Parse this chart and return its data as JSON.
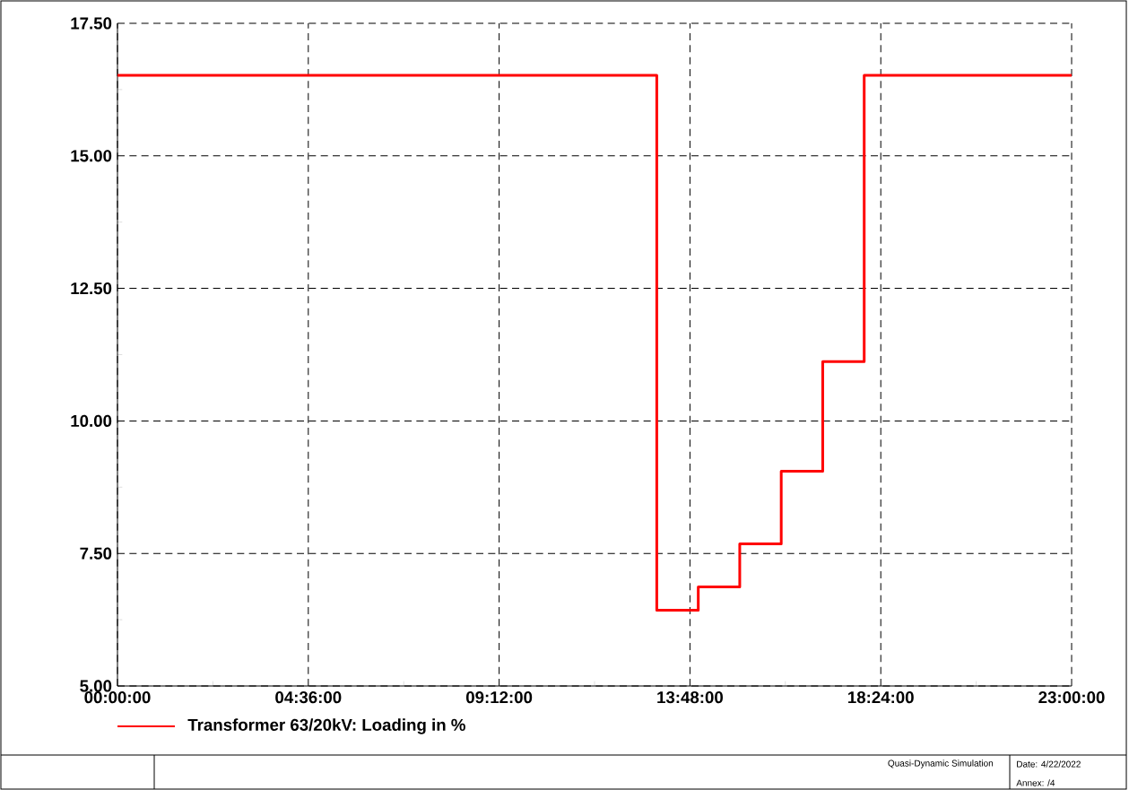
{
  "chart_data": {
    "type": "step",
    "x": [
      0,
      13,
      14,
      15,
      16,
      17,
      18,
      23
    ],
    "series": [
      {
        "name": "Transformer 63/20kV: Loading in %",
        "color": "#ff0000",
        "values": [
          16.52,
          6.43,
          6.87,
          7.68,
          9.05,
          11.12,
          16.52,
          16.52
        ]
      }
    ],
    "xlim": [
      0,
      23
    ],
    "xticks": [
      {
        "value": 0,
        "label": "00:00:00"
      },
      {
        "value": 4.6,
        "label": "04:36:00"
      },
      {
        "value": 9.2,
        "label": "09:12:00"
      },
      {
        "value": 13.8,
        "label": "13:48:00"
      },
      {
        "value": 18.4,
        "label": "18:24:00"
      },
      {
        "value": 23,
        "label": "23:00:00"
      }
    ],
    "ylim": [
      5,
      17.5
    ],
    "yticks": [
      {
        "value": 5,
        "label": "5.00"
      },
      {
        "value": 7.5,
        "label": "7.50"
      },
      {
        "value": 10,
        "label": "10.00"
      },
      {
        "value": 12.5,
        "label": "12.50"
      },
      {
        "value": 15,
        "label": "15.00"
      },
      {
        "value": 17.5,
        "label": "17.50"
      }
    ],
    "grid": true,
    "legend": "bottom left",
    "line_style": "solid",
    "annotations": [
      "Quasi-Dynamic Simulation",
      "Date: 4/22/2022",
      "Annex:  /4"
    ]
  }
}
